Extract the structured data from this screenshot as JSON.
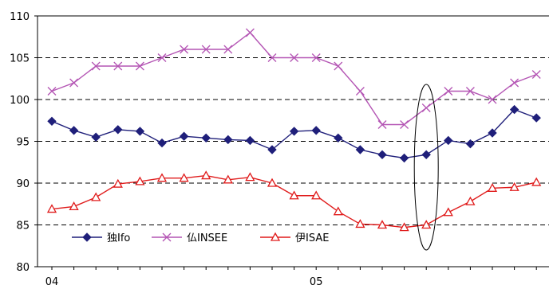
{
  "chart_data": {
    "type": "line",
    "title": "",
    "xlabel": "",
    "ylabel": "",
    "ylim": [
      80,
      110
    ],
    "yticks": [
      80,
      85,
      90,
      95,
      100,
      105,
      110
    ],
    "y_tick_labels": [
      "80",
      "85",
      "90",
      "95",
      "100",
      "105",
      "110"
    ],
    "x_labels": [
      {
        "text": "04",
        "at": 0
      },
      {
        "text": "05",
        "at": 12
      }
    ],
    "grid": "horizontal-dashed",
    "legend_position": "bottom-left",
    "highlight": {
      "shape": "ellipse",
      "at": 17
    },
    "series": [
      {
        "name": "独Ifo",
        "color": "#1f1f7a",
        "marker": "diamond",
        "values": [
          97.4,
          96.3,
          95.5,
          96.4,
          96.2,
          94.8,
          95.6,
          95.4,
          95.2,
          95.1,
          94.0,
          96.2,
          96.3,
          95.4,
          94.0,
          93.4,
          93.0,
          93.4,
          95.1,
          94.7,
          96.0,
          98.8,
          97.8
        ]
      },
      {
        "name": "仏INSEE",
        "color": "#b455b4",
        "marker": "x",
        "values": [
          101,
          102,
          104,
          104,
          104,
          105,
          106,
          106,
          106,
          108,
          105,
          105,
          105,
          104,
          101,
          97,
          97,
          99,
          101,
          101,
          100,
          102,
          103
        ]
      },
      {
        "name": "伊ISAE",
        "color": "#e01b1b",
        "marker": "triangle",
        "values": [
          86.9,
          87.2,
          88.3,
          89.9,
          90.2,
          90.6,
          90.6,
          90.9,
          90.4,
          90.7,
          90.0,
          88.5,
          88.5,
          86.6,
          85.1,
          85.0,
          84.7,
          85.0,
          86.5,
          87.8,
          89.4,
          89.5,
          90.1
        ]
      }
    ]
  }
}
